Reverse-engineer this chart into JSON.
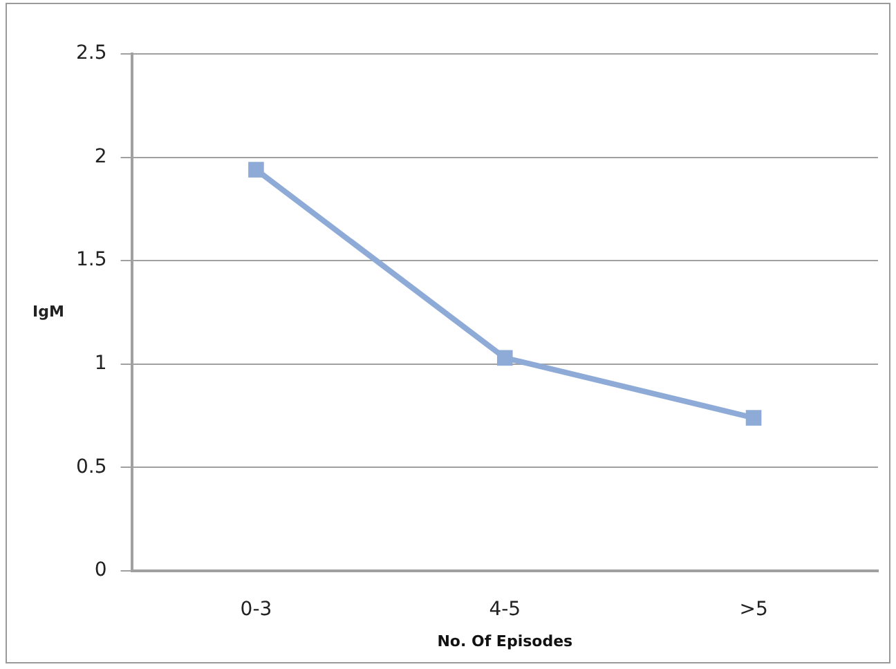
{
  "chart_data": {
    "type": "line",
    "xlabel": "No. Of Episodes",
    "ylabel": "IgM",
    "categories": [
      "0-3",
      "4-5",
      ">5"
    ],
    "series": [
      {
        "color": "#8eaad6",
        "values": [
          1.94,
          1.03,
          0.74
        ]
      }
    ],
    "ylim": [
      0,
      2.5
    ],
    "yticks": [
      0,
      0.5,
      1,
      1.5,
      2,
      2.5
    ],
    "grid": "y",
    "legend": false,
    "marker": "square",
    "line_style": "solid"
  }
}
